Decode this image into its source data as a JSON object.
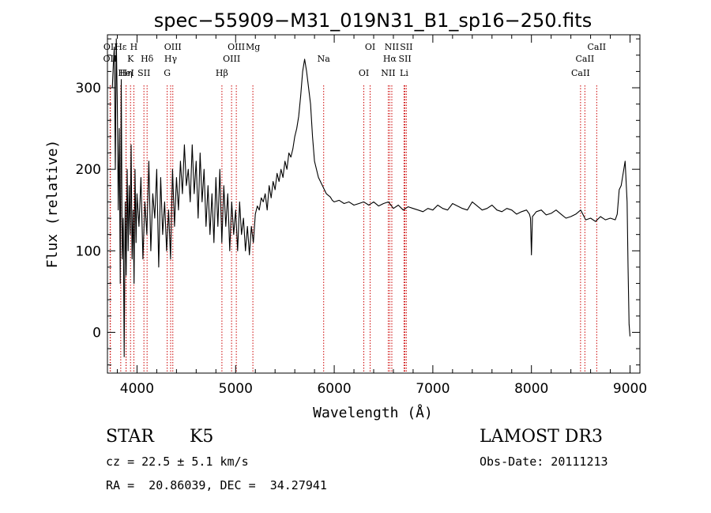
{
  "chart_data": {
    "type": "line",
    "title": "spec−55909−M31_019N31_B1_sp16−250.fits",
    "xlabel": "Wavelength (Å)",
    "ylabel": "Flux (relative)",
    "xlim": [
      3700,
      9100
    ],
    "ylim": [
      -50,
      365
    ],
    "xticks": [
      4000,
      5000,
      6000,
      7000,
      8000,
      9000
    ],
    "yticks": [
      0,
      100,
      200,
      300
    ],
    "xtick_labels": [
      "4000",
      "5000",
      "6000",
      "7000",
      "8000",
      "9000"
    ],
    "ytick_labels": [
      "0",
      "100",
      "200",
      "300"
    ],
    "line_color": "#000000",
    "marker_color": "#cc0000",
    "series": [
      {
        "name": "flux",
        "x": [
          3750,
          3760,
          3770,
          3780,
          3790,
          3800,
          3810,
          3820,
          3830,
          3840,
          3850,
          3860,
          3870,
          3880,
          3890,
          3900,
          3910,
          3920,
          3930,
          3940,
          3950,
          3960,
          3970,
          3980,
          3990,
          4000,
          4020,
          4040,
          4060,
          4080,
          4100,
          4120,
          4140,
          4160,
          4180,
          4200,
          4220,
          4240,
          4260,
          4280,
          4300,
          4320,
          4340,
          4360,
          4380,
          4400,
          4420,
          4440,
          4460,
          4480,
          4500,
          4520,
          4540,
          4560,
          4580,
          4600,
          4620,
          4640,
          4660,
          4680,
          4700,
          4720,
          4740,
          4760,
          4780,
          4800,
          4820,
          4840,
          4860,
          4880,
          4900,
          4920,
          4940,
          4960,
          4980,
          5000,
          5020,
          5040,
          5060,
          5080,
          5100,
          5120,
          5140,
          5160,
          5180,
          5200,
          5220,
          5240,
          5260,
          5280,
          5300,
          5320,
          5340,
          5360,
          5380,
          5400,
          5420,
          5440,
          5460,
          5480,
          5500,
          5520,
          5540,
          5560,
          5580,
          5600,
          5620,
          5640,
          5660,
          5680,
          5700,
          5720,
          5740,
          5760,
          5780,
          5800,
          5820,
          5840,
          5860,
          5880,
          5900,
          5920,
          5940,
          5960,
          5980,
          6000,
          6050,
          6100,
          6150,
          6200,
          6250,
          6300,
          6350,
          6400,
          6450,
          6500,
          6550,
          6600,
          6650,
          6700,
          6750,
          6800,
          6850,
          6900,
          6950,
          7000,
          7050,
          7100,
          7150,
          7200,
          7250,
          7300,
          7350,
          7400,
          7450,
          7500,
          7550,
          7600,
          7650,
          7700,
          7750,
          7800,
          7850,
          7900,
          7950,
          7980,
          7990,
          8000,
          8010,
          8050,
          8100,
          8150,
          8200,
          8250,
          8300,
          8350,
          8400,
          8450,
          8500,
          8550,
          8600,
          8650,
          8700,
          8750,
          8800,
          8850,
          8870,
          8890,
          8910,
          8930,
          8950,
          8970,
          8980,
          8990,
          9000
        ],
        "values": [
          300,
          330,
          350,
          200,
          360,
          280,
          150,
          250,
          60,
          310,
          90,
          140,
          -30,
          160,
          70,
          200,
          100,
          180,
          120,
          230,
          90,
          150,
          60,
          200,
          110,
          170,
          130,
          190,
          90,
          160,
          120,
          210,
          100,
          170,
          140,
          200,
          80,
          190,
          120,
          160,
          100,
          150,
          90,
          200,
          130,
          190,
          150,
          210,
          170,
          230,
          180,
          200,
          160,
          230,
          170,
          210,
          140,
          220,
          160,
          200,
          130,
          180,
          120,
          170,
          110,
          190,
          130,
          200,
          110,
          180,
          130,
          170,
          100,
          160,
          120,
          150,
          100,
          160,
          120,
          140,
          100,
          130,
          95,
          130,
          110,
          145,
          155,
          150,
          165,
          160,
          170,
          150,
          180,
          165,
          185,
          175,
          195,
          185,
          200,
          190,
          210,
          200,
          220,
          215,
          225,
          240,
          250,
          265,
          290,
          320,
          335,
          320,
          300,
          280,
          240,
          210,
          200,
          190,
          185,
          180,
          175,
          170,
          168,
          166,
          162,
          160,
          162,
          158,
          160,
          156,
          158,
          160,
          156,
          160,
          155,
          158,
          160,
          152,
          156,
          150,
          154,
          152,
          150,
          148,
          152,
          150,
          156,
          152,
          150,
          158,
          155,
          152,
          150,
          160,
          155,
          150,
          152,
          156,
          150,
          148,
          152,
          150,
          145,
          148,
          150,
          145,
          140,
          95,
          142,
          148,
          150,
          144,
          146,
          150,
          145,
          140,
          142,
          145,
          150,
          138,
          140,
          136,
          142,
          138,
          140,
          138,
          145,
          175,
          180,
          195,
          210,
          160,
          80,
          10,
          -5
        ]
      }
    ],
    "lines": [
      {
        "label": "Hε",
        "wl": 3835
      },
      {
        "label": "OII",
        "wl": 3727
      },
      {
        "label": "Hη",
        "wl": 3889
      },
      {
        "label": "OII",
        "wl": 3730
      },
      {
        "label": "K",
        "wl": 3934
      },
      {
        "label": "HeI",
        "wl": 3889
      },
      {
        "label": "H",
        "wl": 3968
      },
      {
        "label": "Hδ",
        "wl": 4102
      },
      {
        "label": "SII",
        "wl": 4070
      },
      {
        "label": "OIII",
        "wl": 4363
      },
      {
        "label": "Hγ",
        "wl": 4341
      },
      {
        "label": "G",
        "wl": 4306
      },
      {
        "label": "OIII",
        "wl": 5007
      },
      {
        "label": "OIII",
        "wl": 4959
      },
      {
        "label": "Hβ",
        "wl": 4861
      },
      {
        "label": "Mg",
        "wl": 5175
      },
      {
        "label": "Na",
        "wl": 5893
      },
      {
        "label": "OI",
        "wl": 6300
      },
      {
        "label": "OI",
        "wl": 6364
      },
      {
        "label": "Hα",
        "wl": 6563
      },
      {
        "label": "NII",
        "wl": 6548
      },
      {
        "label": "NII",
        "wl": 6584
      },
      {
        "label": "SII",
        "wl": 6717
      },
      {
        "label": "Li",
        "wl": 6708
      },
      {
        "label": "SII",
        "wl": 6731
      },
      {
        "label": "CaII",
        "wl": 8542
      },
      {
        "label": "CaII",
        "wl": 8498
      },
      {
        "label": "CaII",
        "wl": 8662
      }
    ]
  },
  "info": {
    "class_label": "STAR",
    "subclass": "K5",
    "survey": "LAMOST DR3",
    "cz": "cz = 22.5 ± 5.1 km/s",
    "obs_date": "Obs-Date: 20111213",
    "coords": "RA =  20.86039, DEC =  34.27941"
  }
}
